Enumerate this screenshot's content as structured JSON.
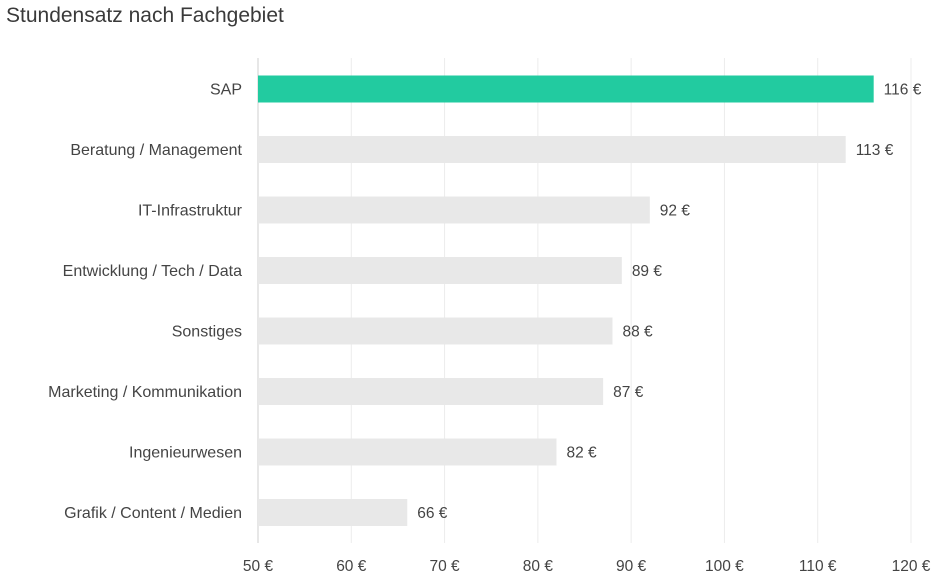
{
  "chart_data": {
    "type": "bar",
    "orientation": "horizontal",
    "title": "Stundensatz nach Fachgebiet",
    "xlabel": "",
    "ylabel": "",
    "categories": [
      "SAP",
      "Beratung / Management",
      "IT-Infrastruktur",
      "Entwicklung / Tech / Data",
      "Sonstiges",
      "Marketing / Kommunikation",
      "Ingenieurwesen",
      "Grafik / Content / Medien"
    ],
    "values": [
      116,
      113,
      92,
      89,
      88,
      87,
      82,
      66
    ],
    "value_labels": [
      "116 €",
      "113 €",
      "92 €",
      "89 €",
      "88 €",
      "87 €",
      "82 €",
      "66 €"
    ],
    "xlim": [
      50,
      120
    ],
    "x_ticks": [
      50,
      60,
      70,
      80,
      90,
      100,
      110,
      120
    ],
    "x_tick_labels": [
      "50 €",
      "60 €",
      "70 €",
      "80 €",
      "90 €",
      "100 €",
      "110 €",
      "120 €"
    ],
    "grid": true,
    "highlight_index": 0,
    "colors": {
      "highlight": "#22cba0",
      "bar": "#e8e8e8",
      "grid": "#ececec",
      "axis": "#cfcfcf",
      "text": "#444444"
    }
  }
}
